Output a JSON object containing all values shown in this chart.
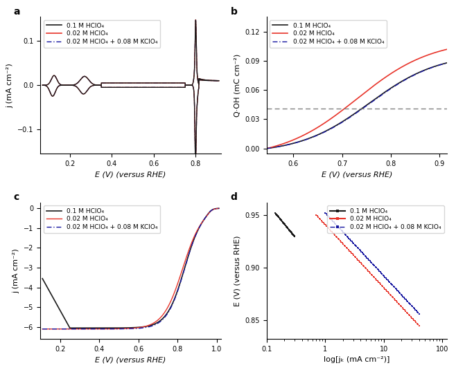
{
  "panel_a": {
    "label": "a",
    "xlabel": "E (V) (versus RHE)",
    "ylabel": "j (mA cm⁻²)",
    "xlim": [
      0.06,
      0.92
    ],
    "ylim": [
      -0.155,
      0.155
    ],
    "xticks": [
      0.2,
      0.4,
      0.6,
      0.8
    ],
    "yticks": [
      -0.1,
      0.0,
      0.1
    ]
  },
  "panel_b": {
    "label": "b",
    "xlabel": "E (V) (versus RHE)",
    "ylabel": "Q·OH (mC cm⁻²)",
    "xlim": [
      0.545,
      0.915
    ],
    "ylim": [
      -0.005,
      0.135
    ],
    "xticks": [
      0.6,
      0.7,
      0.8,
      0.9
    ],
    "yticks": [
      0.0,
      0.03,
      0.06,
      0.09,
      0.12
    ],
    "dashed_y": 0.041
  },
  "panel_c": {
    "label": "c",
    "xlabel": "E (V) (versus RHE)",
    "ylabel": "j (mA cm⁻²)",
    "xlim": [
      0.1,
      1.02
    ],
    "ylim": [
      -6.6,
      0.3
    ],
    "xticks": [
      0.2,
      0.4,
      0.6,
      0.8,
      1.0
    ],
    "yticks": [
      0,
      -1,
      -2,
      -3,
      -4,
      -5,
      -6
    ]
  },
  "panel_d": {
    "label": "d",
    "xlabel": "log[jₖ (mA cm⁻²)]",
    "ylabel": "E (V) (versus RHE)",
    "xlim_log": [
      0.1,
      120
    ],
    "ylim": [
      0.832,
      0.962
    ],
    "yticks": [
      0.85,
      0.9,
      0.95
    ]
  },
  "colors": {
    "black": "#1a1a1a",
    "red": "#e8342a",
    "blue_dash": "#1515a0"
  },
  "legend_labels": [
    "0.1 M HClO₄",
    "0.02 M HClO₄",
    "0.02 M HClO₄ + 0.08 M KClO₄"
  ]
}
